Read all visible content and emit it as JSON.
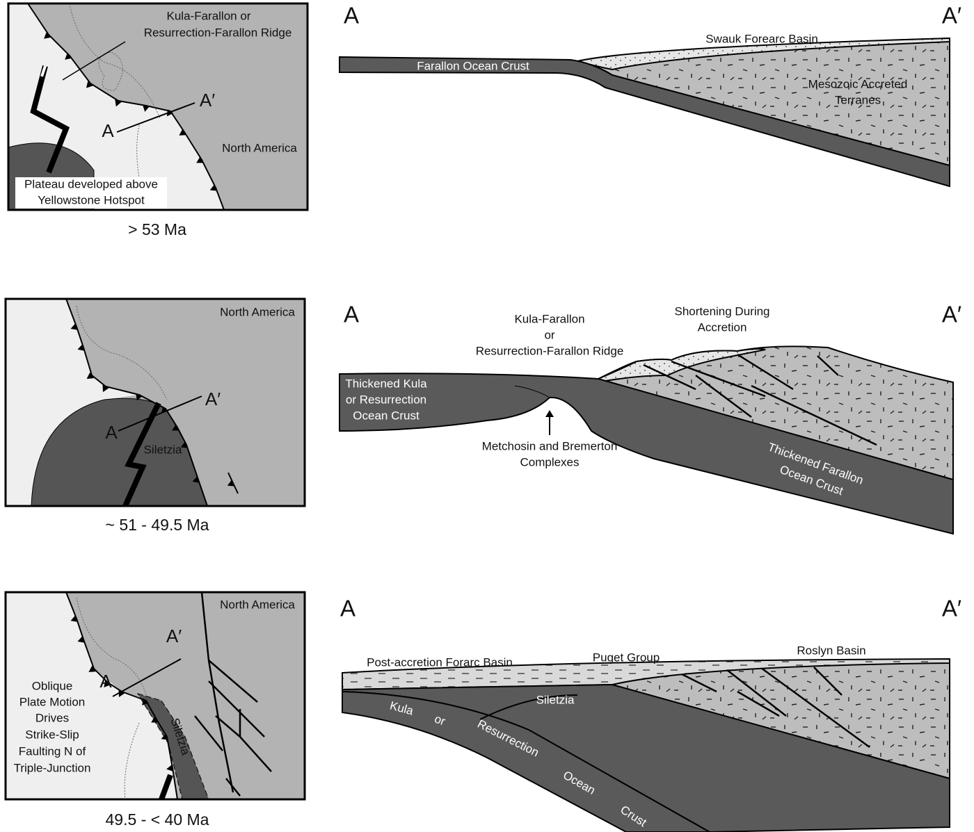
{
  "panels": [
    {
      "age": "> 53 Ma",
      "map": {
        "ridge_label": [
          "Kula-Farallon or",
          "Resurrection-Farallon Ridge"
        ],
        "a_prime": "A′",
        "a": "A",
        "north_america": "North America",
        "plateau_label": [
          "Plateau developed above",
          "Yellowstone Hotspot"
        ]
      },
      "section": {
        "a": "A",
        "a_prime": "A′",
        "basin": "Swauk Forearc Basin",
        "crust": "Farallon Ocean Crust",
        "terranes": [
          "Mesozoic Accreted",
          "Terranes"
        ]
      }
    },
    {
      "age": "~ 51 - 49.5 Ma",
      "map": {
        "north_america": "North America",
        "a_prime": "A′",
        "a": "A",
        "siletzia": "Siletzia"
      },
      "section": {
        "a": "A",
        "a_prime": "A′",
        "ridge": [
          "Kula-Farallon",
          "or",
          "Resurrection-Farallon Ridge"
        ],
        "shortening": [
          "Shortening During",
          "Accretion"
        ],
        "kula_crust": [
          "Thickened Kula",
          "or Resurrection",
          "Ocean Crust"
        ],
        "complexes": [
          "Metchosin and Bremerton",
          "Complexes"
        ],
        "farallon_crust": [
          "Thickened Farallon",
          "Ocean Crust"
        ]
      }
    },
    {
      "age": "49.5 - < 40 Ma",
      "map": {
        "north_america": "North America",
        "a_prime": "A′",
        "a": "A",
        "siletzia": "Siletzia",
        "oblique": [
          "Oblique",
          "Plate Motion",
          "Drives",
          "Strike-Slip",
          "Faulting N of",
          "Triple-Junction"
        ]
      },
      "section": {
        "a": "A",
        "a_prime": "A′",
        "forearc": "Post-accretion Forarc Basin",
        "puget": "Puget Group",
        "roslyn": "Roslyn Basin",
        "siletzia": "Siletzia",
        "crust_words": [
          "Kula",
          "or",
          "Resurrection",
          "Ocean",
          "Crust"
        ]
      }
    }
  ]
}
